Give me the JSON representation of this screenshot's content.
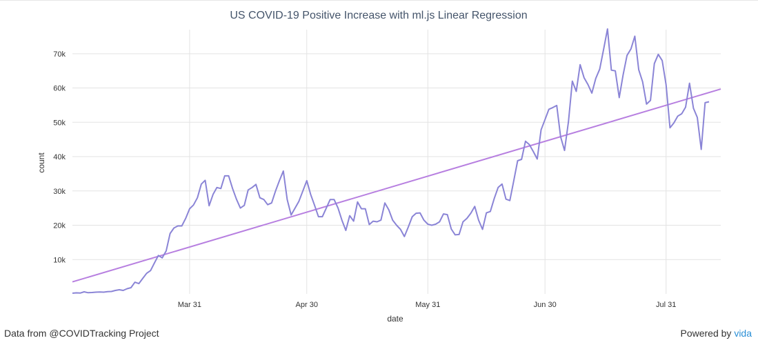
{
  "footer": {
    "source_text": "Data from @COVIDTracking Project",
    "powered_prefix": "Powered by ",
    "powered_brand": "vida"
  },
  "colors": {
    "actual_series": "#8a84d6",
    "regression_series": "#b77fe0",
    "grid": "#e3e3e3",
    "brand_link": "#2a8fd6"
  },
  "chart_data": {
    "type": "line",
    "title": "US COVID-19 Positive Increase with ml.js Linear Regression",
    "xlabel": "date",
    "ylabel": "count",
    "x_start": "2020-03-01",
    "x_end": "2020-08-14",
    "ylim": [
      0,
      77000
    ],
    "yticks": [
      10000,
      20000,
      30000,
      40000,
      50000,
      60000,
      70000
    ],
    "ytick_labels": [
      "10k",
      "20k",
      "30k",
      "40k",
      "50k",
      "60k",
      "70k"
    ],
    "xticks": [
      "2020-03-31",
      "2020-04-30",
      "2020-05-31",
      "2020-06-30",
      "2020-07-31"
    ],
    "xtick_labels": [
      "Mar 31",
      "Apr 30",
      "May 31",
      "Jun 30",
      "Jul 31"
    ],
    "grid": true,
    "series": [
      {
        "points": [
          [
            "2020-03-01",
            200
          ],
          [
            "2020-03-02",
            300
          ],
          [
            "2020-03-03",
            250
          ],
          [
            "2020-03-04",
            600
          ],
          [
            "2020-03-05",
            350
          ],
          [
            "2020-03-06",
            400
          ],
          [
            "2020-03-07",
            500
          ],
          [
            "2020-03-08",
            550
          ],
          [
            "2020-03-09",
            500
          ],
          [
            "2020-03-10",
            650
          ],
          [
            "2020-03-11",
            700
          ],
          [
            "2020-03-12",
            1000
          ],
          [
            "2020-03-13",
            1200
          ],
          [
            "2020-03-14",
            1000
          ],
          [
            "2020-03-15",
            1500
          ],
          [
            "2020-03-16",
            1800
          ],
          [
            "2020-03-17",
            3400
          ],
          [
            "2020-03-18",
            3000
          ],
          [
            "2020-03-19",
            4500
          ],
          [
            "2020-03-20",
            6000
          ],
          [
            "2020-03-21",
            6800
          ],
          [
            "2020-03-22",
            9000
          ],
          [
            "2020-03-23",
            11200
          ],
          [
            "2020-03-24",
            10500
          ],
          [
            "2020-03-25",
            12500
          ],
          [
            "2020-03-26",
            17600
          ],
          [
            "2020-03-27",
            19200
          ],
          [
            "2020-03-28",
            19800
          ],
          [
            "2020-03-29",
            19800
          ],
          [
            "2020-03-30",
            22000
          ],
          [
            "2020-03-31",
            24800
          ],
          [
            "2020-04-01",
            25900
          ],
          [
            "2020-04-02",
            28000
          ],
          [
            "2020-04-03",
            32000
          ],
          [
            "2020-04-04",
            33100
          ],
          [
            "2020-04-05",
            25700
          ],
          [
            "2020-04-06",
            29000
          ],
          [
            "2020-04-07",
            31000
          ],
          [
            "2020-04-08",
            30700
          ],
          [
            "2020-04-09",
            34400
          ],
          [
            "2020-04-10",
            34400
          ],
          [
            "2020-04-11",
            30700
          ],
          [
            "2020-04-12",
            27600
          ],
          [
            "2020-04-13",
            25000
          ],
          [
            "2020-04-14",
            25800
          ],
          [
            "2020-04-15",
            30300
          ],
          [
            "2020-04-16",
            31000
          ],
          [
            "2020-04-17",
            31900
          ],
          [
            "2020-04-18",
            28000
          ],
          [
            "2020-04-19",
            27500
          ],
          [
            "2020-04-20",
            26000
          ],
          [
            "2020-04-21",
            26500
          ],
          [
            "2020-04-22",
            30000
          ],
          [
            "2020-04-23",
            33000
          ],
          [
            "2020-04-24",
            35800
          ],
          [
            "2020-04-25",
            27500
          ],
          [
            "2020-04-26",
            23000
          ],
          [
            "2020-04-27",
            25000
          ],
          [
            "2020-04-28",
            27000
          ],
          [
            "2020-04-29",
            30000
          ],
          [
            "2020-04-30",
            33000
          ],
          [
            "2020-05-01",
            29000
          ],
          [
            "2020-05-02",
            25800
          ],
          [
            "2020-05-03",
            22500
          ],
          [
            "2020-05-04",
            22500
          ],
          [
            "2020-05-05",
            25000
          ],
          [
            "2020-05-06",
            27500
          ],
          [
            "2020-05-07",
            27500
          ],
          [
            "2020-05-08",
            25000
          ],
          [
            "2020-05-09",
            21500
          ],
          [
            "2020-05-10",
            18500
          ],
          [
            "2020-05-11",
            22800
          ],
          [
            "2020-05-12",
            21200
          ],
          [
            "2020-05-13",
            26800
          ],
          [
            "2020-05-14",
            24800
          ],
          [
            "2020-05-15",
            24800
          ],
          [
            "2020-05-16",
            20200
          ],
          [
            "2020-05-17",
            21200
          ],
          [
            "2020-05-18",
            21000
          ],
          [
            "2020-05-19",
            21500
          ],
          [
            "2020-05-20",
            26500
          ],
          [
            "2020-05-21",
            24500
          ],
          [
            "2020-05-22",
            21500
          ],
          [
            "2020-05-23",
            20000
          ],
          [
            "2020-05-24",
            18800
          ],
          [
            "2020-05-25",
            16700
          ],
          [
            "2020-05-26",
            19500
          ],
          [
            "2020-05-27",
            22500
          ],
          [
            "2020-05-28",
            23500
          ],
          [
            "2020-05-29",
            23600
          ],
          [
            "2020-05-30",
            21500
          ],
          [
            "2020-05-31",
            20300
          ],
          [
            "2020-06-01",
            20000
          ],
          [
            "2020-06-02",
            20300
          ],
          [
            "2020-06-03",
            21000
          ],
          [
            "2020-06-04",
            23300
          ],
          [
            "2020-06-05",
            23100
          ],
          [
            "2020-06-06",
            18900
          ],
          [
            "2020-06-07",
            17200
          ],
          [
            "2020-06-08",
            17300
          ],
          [
            "2020-06-09",
            21000
          ],
          [
            "2020-06-10",
            22000
          ],
          [
            "2020-06-11",
            23500
          ],
          [
            "2020-06-12",
            25500
          ],
          [
            "2020-06-13",
            21500
          ],
          [
            "2020-06-14",
            18800
          ],
          [
            "2020-06-15",
            23600
          ],
          [
            "2020-06-16",
            24000
          ],
          [
            "2020-06-17",
            27800
          ],
          [
            "2020-06-18",
            31000
          ],
          [
            "2020-06-19",
            32000
          ],
          [
            "2020-06-20",
            27600
          ],
          [
            "2020-06-21",
            27200
          ],
          [
            "2020-06-22",
            33000
          ],
          [
            "2020-06-23",
            38800
          ],
          [
            "2020-06-24",
            39200
          ],
          [
            "2020-06-25",
            44500
          ],
          [
            "2020-06-26",
            43500
          ],
          [
            "2020-06-27",
            41500
          ],
          [
            "2020-06-28",
            39300
          ],
          [
            "2020-06-29",
            47800
          ],
          [
            "2020-06-30",
            50800
          ],
          [
            "2020-07-01",
            53800
          ],
          [
            "2020-07-02",
            54300
          ],
          [
            "2020-07-03",
            54900
          ],
          [
            "2020-07-04",
            45800
          ],
          [
            "2020-07-05",
            41800
          ],
          [
            "2020-07-06",
            50200
          ],
          [
            "2020-07-07",
            62000
          ],
          [
            "2020-07-08",
            59000
          ],
          [
            "2020-07-09",
            66800
          ],
          [
            "2020-07-10",
            63000
          ],
          [
            "2020-07-11",
            61000
          ],
          [
            "2020-07-12",
            58500
          ],
          [
            "2020-07-13",
            62800
          ],
          [
            "2020-07-14",
            65500
          ],
          [
            "2020-07-15",
            71200
          ],
          [
            "2020-07-16",
            77200
          ],
          [
            "2020-07-17",
            65200
          ],
          [
            "2020-07-18",
            65000
          ],
          [
            "2020-07-19",
            57200
          ],
          [
            "2020-07-20",
            63800
          ],
          [
            "2020-07-21",
            69500
          ],
          [
            "2020-07-22",
            71400
          ],
          [
            "2020-07-23",
            75100
          ],
          [
            "2020-07-24",
            65300
          ],
          [
            "2020-07-25",
            61800
          ],
          [
            "2020-07-26",
            55300
          ],
          [
            "2020-07-27",
            56400
          ],
          [
            "2020-07-28",
            67100
          ],
          [
            "2020-07-29",
            69800
          ],
          [
            "2020-07-30",
            68000
          ],
          [
            "2020-07-31",
            61000
          ],
          [
            "2020-08-01",
            48400
          ],
          [
            "2020-08-02",
            49800
          ],
          [
            "2020-08-03",
            51800
          ],
          [
            "2020-08-04",
            52500
          ],
          [
            "2020-08-05",
            54400
          ],
          [
            "2020-08-06",
            61400
          ],
          [
            "2020-08-07",
            54100
          ],
          [
            "2020-08-08",
            51400
          ],
          [
            "2020-08-09",
            42100
          ],
          [
            "2020-08-10",
            55700
          ],
          [
            "2020-08-11",
            56000
          ]
        ]
      },
      {
        "start": [
          "2020-03-01",
          3500
        ],
        "end": [
          "2020-08-14",
          59700
        ]
      }
    ]
  }
}
